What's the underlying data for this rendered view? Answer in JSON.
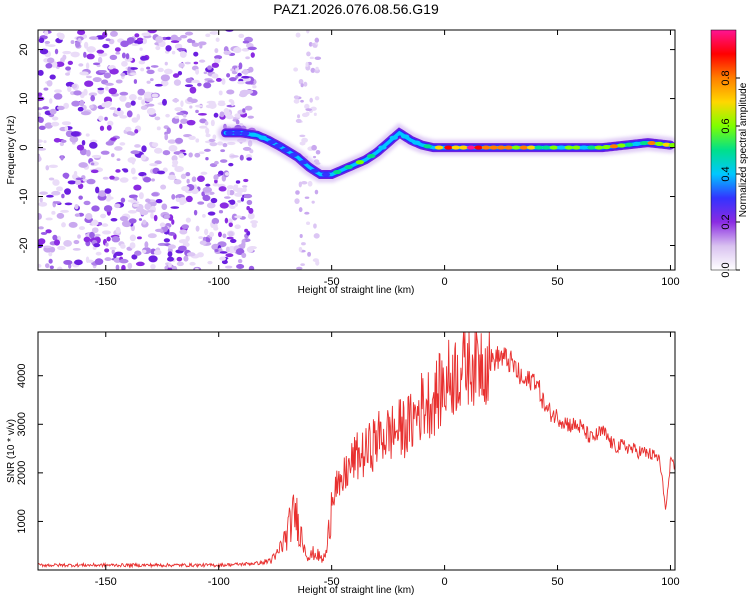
{
  "title": "PAZ1.2026.076.08.56.G19",
  "colors": {
    "snr_line": "#e8302f",
    "axis": "#000000",
    "noise": "#8a2be2"
  },
  "chart_data": [
    {
      "type": "heatmap",
      "title": "PAZ1.2026.076.08.56.G19",
      "xlabel": "Height of straight line (km)",
      "ylabel": "Frequency (Hz)",
      "xlim": [
        -180,
        102
      ],
      "ylim": [
        -25,
        24
      ],
      "xticks": [
        -150,
        -100,
        -50,
        0,
        50,
        100
      ],
      "yticks": [
        -20,
        -10,
        0,
        10,
        20
      ],
      "colorbar": {
        "label": "Normalized spectral amplitude",
        "range": [
          0,
          1
        ],
        "ticks": [
          "0.0",
          "0.2",
          "0.4",
          "0.6",
          "0.8"
        ],
        "colors": [
          "#ffffff",
          "#d9c2f0",
          "#8a2be2",
          "#3333ff",
          "#00c8ff",
          "#00e08a",
          "#7fff00",
          "#ffd700",
          "#ff7f00",
          "#ff0000",
          "#ff1493"
        ]
      },
      "ridge": {
        "x": [
          -97,
          -90,
          -83,
          -78,
          -72,
          -65,
          -60,
          -55,
          -50,
          -45,
          -40,
          -35,
          -30,
          -25,
          -20,
          -15,
          -10,
          -5,
          0,
          10,
          20,
          30,
          40,
          50,
          60,
          70,
          80,
          90,
          100
        ],
        "y": [
          3,
          3,
          2.5,
          1.5,
          0,
          -2,
          -4,
          -5.5,
          -5.5,
          -4.5,
          -3.5,
          -2.5,
          -1,
          1,
          3,
          1.5,
          0.5,
          0,
          0,
          0,
          0,
          0,
          0,
          0,
          0,
          0,
          0.5,
          1,
          0.5
        ],
        "amplitude": [
          0.3,
          0.5,
          0.5,
          0.45,
          0.35,
          0.4,
          0.45,
          0.5,
          0.55,
          0.65,
          0.75,
          0.7,
          0.65,
          0.5,
          0.6,
          0.55,
          0.7,
          0.75,
          0.9,
          1.0,
          1.0,
          0.85,
          0.65,
          0.6,
          0.65,
          0.8,
          0.55,
          0.85,
          0.6
        ]
      }
    },
    {
      "type": "line",
      "xlabel": "Height of straight line (km)",
      "ylabel": "SNR (10 * v/v)",
      "xlim": [
        -180,
        102
      ],
      "ylim": [
        0,
        4900
      ],
      "xticks": [
        -150,
        -100,
        -50,
        0,
        50,
        100
      ],
      "yticks": [
        1000,
        2000,
        3000,
        4000
      ],
      "series": [
        {
          "name": "SNR",
          "x": [
            -180,
            -160,
            -140,
            -120,
            -100,
            -90,
            -80,
            -75,
            -70,
            -68,
            -66,
            -64,
            -62,
            -60,
            -58,
            -56,
            -54,
            -52,
            -50,
            -48,
            -46,
            -44,
            -42,
            -40,
            -35,
            -30,
            -25,
            -20,
            -15,
            -10,
            -5,
            0,
            2,
            5,
            8,
            10,
            15,
            20,
            25,
            30,
            35,
            40,
            45,
            50,
            55,
            60,
            65,
            70,
            75,
            80,
            85,
            90,
            95,
            98,
            100,
            102
          ],
          "y": [
            100,
            100,
            100,
            100,
            100,
            120,
            150,
            250,
            700,
            1000,
            1200,
            800,
            500,
            250,
            350,
            300,
            200,
            400,
            1500,
            1800,
            1600,
            2000,
            2100,
            2300,
            2400,
            2700,
            2800,
            2900,
            3000,
            3400,
            3500,
            3800,
            3950,
            4050,
            4200,
            4300,
            4350,
            4300,
            4400,
            4250,
            3850,
            3950,
            3300,
            3150,
            3000,
            2950,
            2700,
            2850,
            2550,
            2550,
            2450,
            2400,
            2300,
            1250,
            2200,
            2100
          ]
        }
      ]
    }
  ]
}
